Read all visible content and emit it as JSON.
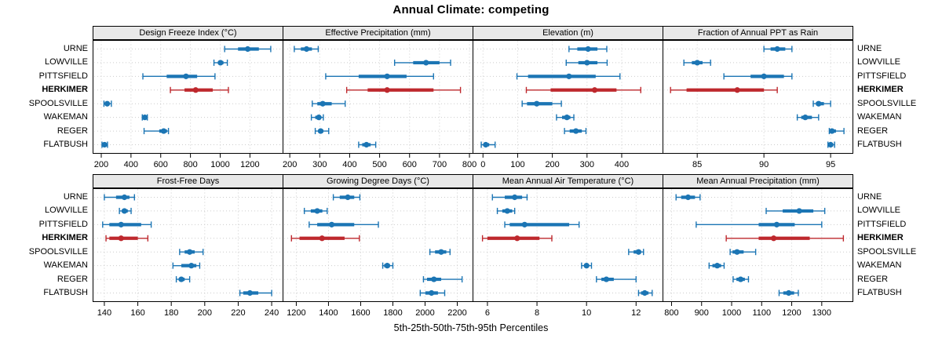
{
  "title": "Annual Climate: competing",
  "xlabel": "5th-25th-50th-75th-95th Percentiles",
  "colors": {
    "series": "#1b75b4",
    "highlight": "#be282d",
    "grid": "#cccccc",
    "strip_bg": "#e8e8e8",
    "border": "#000000",
    "tick": "#000000"
  },
  "chart_data": {
    "type": "dot-whisker",
    "percentiles": [
      5,
      25,
      50,
      75,
      95
    ],
    "cities": [
      "URNE",
      "LOWVILLE",
      "PITTSFIELD",
      "HERKIMER",
      "SPOOLSVILLE",
      "WAKEMAN",
      "REGER",
      "FLATBUSH"
    ],
    "highlight_city": "HERKIMER",
    "layout": "2 rows x 4 columns",
    "panels": [
      {
        "title": "Design Freeze Index (°C)",
        "row": 0,
        "col": 0,
        "xlim": [
          142,
          1425
        ],
        "ticks": [
          200,
          400,
          600,
          800,
          1000,
          1200
        ],
        "values": {
          "URNE": [
            1030,
            1120,
            1185,
            1260,
            1340
          ],
          "LOWVILLE": [
            958,
            985,
            1002,
            1022,
            1048
          ],
          "PITTSFIELD": [
            480,
            640,
            770,
            845,
            965
          ],
          "HERKIMER": [
            665,
            760,
            835,
            950,
            1055
          ],
          "SPOOLSVILLE": [
            218,
            230,
            240,
            252,
            268
          ],
          "WAKEMAN": [
            476,
            486,
            493,
            500,
            510
          ],
          "REGER": [
            488,
            590,
            620,
            642,
            652
          ],
          "FLATBUSH": [
            205,
            214,
            222,
            230,
            242
          ]
        }
      },
      {
        "title": "Effective Precipitation (mm)",
        "row": 0,
        "col": 1,
        "xlim": [
          176,
          813
        ],
        "ticks": [
          200,
          300,
          400,
          500,
          600,
          700,
          800
        ],
        "values": {
          "URNE": [
            215,
            237,
            256,
            274,
            295
          ],
          "LOWVILLE": [
            550,
            612,
            655,
            700,
            737
          ],
          "PITTSFIELD": [
            320,
            430,
            525,
            590,
            680
          ],
          "HERKIMER": [
            390,
            460,
            525,
            680,
            770
          ],
          "SPOOLSVILLE": [
            275,
            292,
            310,
            340,
            385
          ],
          "WAKEMAN": [
            272,
            285,
            297,
            305,
            312
          ],
          "REGER": [
            285,
            295,
            303,
            312,
            330
          ],
          "FLATBUSH": [
            430,
            442,
            456,
            470,
            487
          ]
        }
      },
      {
        "title": "Elevation (m)",
        "row": 0,
        "col": 2,
        "xlim": [
          -30,
          520
        ],
        "ticks": [
          0,
          100,
          200,
          300,
          400
        ],
        "values": {
          "URNE": [
            248,
            272,
            303,
            330,
            357
          ],
          "LOWVILLE": [
            240,
            275,
            300,
            330,
            358
          ],
          "PITTSFIELD": [
            98,
            130,
            248,
            325,
            395
          ],
          "HERKIMER": [
            125,
            195,
            322,
            385,
            455
          ],
          "SPOOLSVILLE": [
            113,
            127,
            155,
            200,
            226
          ],
          "WAKEMAN": [
            212,
            228,
            242,
            252,
            262
          ],
          "REGER": [
            235,
            250,
            268,
            285,
            297
          ],
          "FLATBUSH": [
            -5,
            2,
            8,
            18,
            35
          ]
        }
      },
      {
        "title": "Fraction of Annual PPT as Rain",
        "row": 0,
        "col": 3,
        "xlim": [
          82.4,
          96.7
        ],
        "ticks": [
          85,
          90,
          95
        ],
        "values": {
          "URNE": [
            90.0,
            90.5,
            91.0,
            91.6,
            92.1
          ],
          "LOWVILLE": [
            84.0,
            84.6,
            85.0,
            85.4,
            86.0
          ],
          "PITTSFIELD": [
            87.0,
            89.0,
            90.0,
            91.5,
            92.1
          ],
          "HERKIMER": [
            83.0,
            84.2,
            88.0,
            90.0,
            91.0
          ],
          "SPOOLSVILLE": [
            93.7,
            93.9,
            94.1,
            94.5,
            95.0
          ],
          "WAKEMAN": [
            92.5,
            92.8,
            93.1,
            93.6,
            94.1
          ],
          "REGER": [
            94.9,
            95.0,
            95.1,
            95.4,
            96.0
          ],
          "FLATBUSH": [
            94.8,
            94.9,
            95.0,
            95.2,
            95.3
          ]
        }
      },
      {
        "title": "Frost-Free Days",
        "row": 1,
        "col": 0,
        "xlim": [
          133,
          247
        ],
        "ticks": [
          140,
          160,
          180,
          200,
          220,
          240
        ],
        "values": {
          "URNE": [
            140,
            147,
            152,
            155,
            158
          ],
          "LOWVILLE": [
            149,
            150.5,
            152,
            154,
            156
          ],
          "PITTSFIELD": [
            139,
            143,
            150,
            162,
            168
          ],
          "HERKIMER": [
            141,
            143,
            150,
            160,
            166
          ],
          "SPOOLSVILLE": [
            185,
            188,
            191,
            194,
            199
          ],
          "WAKEMAN": [
            181,
            186,
            192,
            195,
            197
          ],
          "REGER": [
            183,
            184.5,
            186,
            188,
            191
          ],
          "FLATBUSH": [
            221,
            223,
            227,
            232,
            240
          ]
        }
      },
      {
        "title": "Growing Degree Days (°C)",
        "row": 1,
        "col": 1,
        "xlim": [
          1115,
          2300
        ],
        "ticks": [
          1200,
          1400,
          1600,
          1800,
          2000,
          2200
        ],
        "values": {
          "URNE": [
            1430,
            1470,
            1520,
            1560,
            1595
          ],
          "LOWVILLE": [
            1250,
            1290,
            1330,
            1362,
            1392
          ],
          "PITTSFIELD": [
            1280,
            1330,
            1420,
            1560,
            1710
          ],
          "HERKIMER": [
            1170,
            1220,
            1360,
            1500,
            1592
          ],
          "SPOOLSVILLE": [
            2030,
            2062,
            2100,
            2132,
            2155
          ],
          "WAKEMAN": [
            1737,
            1746,
            1765,
            1782,
            1800
          ],
          "REGER": [
            1990,
            2012,
            2055,
            2100,
            2230
          ],
          "FLATBUSH": [
            1970,
            2002,
            2040,
            2080,
            2122
          ]
        }
      },
      {
        "title": "Mean Annual Air Temperature (°C)",
        "row": 1,
        "col": 2,
        "xlim": [
          5.4,
          13.1
        ],
        "ticks": [
          6,
          8,
          10,
          12
        ],
        "values": {
          "URNE": [
            6.2,
            6.7,
            7.1,
            7.4,
            7.6
          ],
          "LOWVILLE": [
            6.4,
            6.6,
            6.8,
            7.0,
            7.1
          ],
          "PITTSFIELD": [
            6.7,
            6.9,
            7.5,
            9.3,
            9.7
          ],
          "HERKIMER": [
            5.8,
            6.0,
            7.2,
            8.1,
            8.6
          ],
          "SPOOLSVILLE": [
            11.7,
            11.9,
            12.1,
            12.2,
            12.3
          ],
          "WAKEMAN": [
            9.8,
            9.9,
            10.0,
            10.1,
            10.2
          ],
          "REGER": [
            10.4,
            10.6,
            10.8,
            11.1,
            12.0
          ],
          "FLATBUSH": [
            12.1,
            12.2,
            12.35,
            12.5,
            12.65
          ]
        }
      },
      {
        "title": "Mean Annual Precipitation (mm)",
        "row": 1,
        "col": 3,
        "xlim": [
          770,
          1405
        ],
        "ticks": [
          800,
          900,
          1000,
          1100,
          1200,
          1300
        ],
        "values": {
          "URNE": [
            815,
            832,
            855,
            878,
            895
          ],
          "LOWVILLE": [
            1115,
            1170,
            1225,
            1272,
            1310
          ],
          "PITTSFIELD": [
            882,
            1090,
            1150,
            1210,
            1300
          ],
          "HERKIMER": [
            982,
            1090,
            1140,
            1260,
            1372
          ],
          "SPOOLSVILLE": [
            995,
            1003,
            1018,
            1040,
            1080
          ],
          "WAKEMAN": [
            925,
            936,
            952,
            965,
            975
          ],
          "REGER": [
            1005,
            1016,
            1030,
            1044,
            1056
          ],
          "FLATBUSH": [
            1158,
            1172,
            1190,
            1208,
            1222
          ]
        }
      }
    ]
  }
}
